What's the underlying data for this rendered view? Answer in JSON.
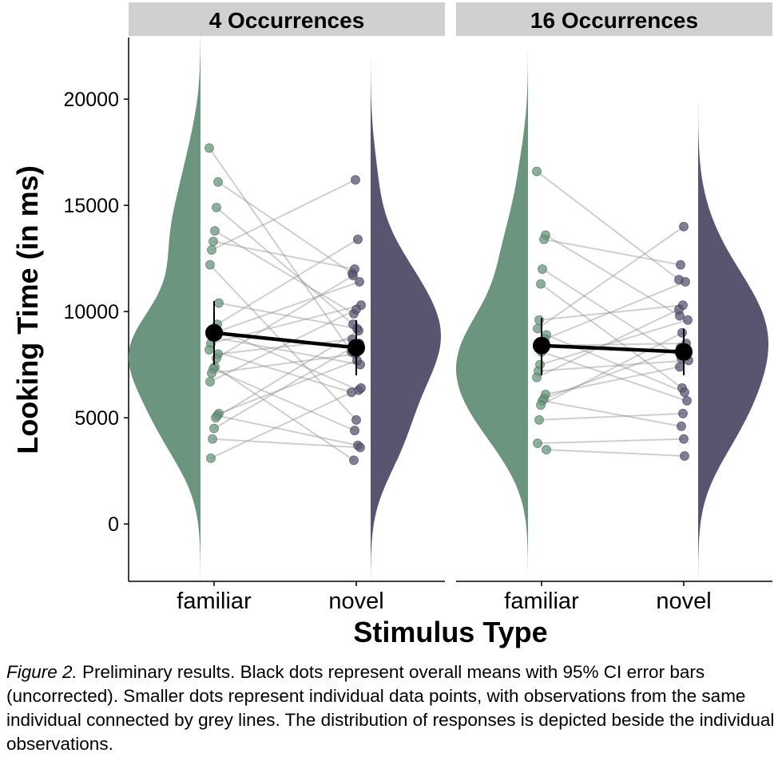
{
  "colors": {
    "familiar": "#6b957e",
    "novel": "#5b5470",
    "strip": "#d0d0d0",
    "mean": "#000000",
    "line": "#c8c8c8"
  },
  "caption": {
    "lead": "Figure 2.",
    "text": " Preliminary results. Black dots represent overall means with 95% CI error bars (uncorrected). Smaller dots represent individual data points, with observations from the same individual connected by grey lines. The distribution of responses is depicted beside the individual observations."
  },
  "chart_data": {
    "type": "scatter",
    "xlabel": "Stimulus Type",
    "ylabel": "Looking Time (in ms)",
    "ylim": [
      -2700,
      22900
    ],
    "yticks": [
      0,
      5000,
      10000,
      15000,
      20000
    ],
    "categories": [
      "familiar",
      "novel"
    ],
    "grid": false,
    "panels": [
      {
        "title": "4 Occurrences",
        "means": [
          {
            "category": "familiar",
            "value": 9000,
            "ci_low": 7500,
            "ci_high": 10500
          },
          {
            "category": "novel",
            "value": 8300,
            "ci_low": 7000,
            "ci_high": 9600
          }
        ],
        "pairs": [
          [
            17700,
            8100
          ],
          [
            16100,
            11800
          ],
          [
            14900,
            9400
          ],
          [
            13800,
            9900
          ],
          [
            13300,
            12000
          ],
          [
            12900,
            16200
          ],
          [
            12200,
            4900
          ],
          [
            10400,
            9200
          ],
          [
            9400,
            13400
          ],
          [
            9200,
            6300
          ],
          [
            9000,
            11400
          ],
          [
            8800,
            7500
          ],
          [
            8500,
            10300
          ],
          [
            8200,
            6200
          ],
          [
            8000,
            8700
          ],
          [
            7800,
            11700
          ],
          [
            7400,
            3000
          ],
          [
            7300,
            4400
          ],
          [
            7100,
            8000
          ],
          [
            6700,
            10100
          ],
          [
            5200,
            7700
          ],
          [
            5100,
            3700
          ],
          [
            5000,
            9100
          ],
          [
            4500,
            8500
          ],
          [
            4000,
            3600
          ],
          [
            3100,
            6400
          ]
        ]
      },
      {
        "title": "16 Occurrences",
        "means": [
          {
            "category": "familiar",
            "value": 8400,
            "ci_low": 7000,
            "ci_high": 9700
          },
          {
            "category": "novel",
            "value": 8100,
            "ci_low": 7000,
            "ci_high": 9200
          }
        ],
        "pairs": [
          [
            16600,
            11500
          ],
          [
            13600,
            9800
          ],
          [
            13400,
            12200
          ],
          [
            12000,
            7800
          ],
          [
            11300,
            6400
          ],
          [
            9600,
            10300
          ],
          [
            9200,
            14000
          ],
          [
            8900,
            6200
          ],
          [
            8700,
            11400
          ],
          [
            8400,
            8500
          ],
          [
            8100,
            5800
          ],
          [
            7500,
            9600
          ],
          [
            7200,
            7700
          ],
          [
            6900,
            10100
          ],
          [
            6100,
            7400
          ],
          [
            5900,
            8300
          ],
          [
            5800,
            4600
          ],
          [
            5600,
            9000
          ],
          [
            4900,
            5200
          ],
          [
            3800,
            4000
          ],
          [
            3500,
            3200
          ]
        ]
      }
    ]
  }
}
